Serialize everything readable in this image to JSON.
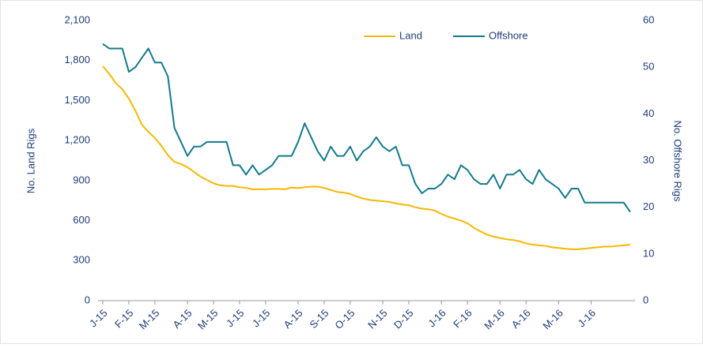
{
  "chart_data": {
    "type": "line",
    "categories": [
      "J-15",
      null,
      null,
      null,
      "F-15",
      null,
      null,
      null,
      "M-15",
      null,
      null,
      null,
      null,
      "A-15",
      null,
      null,
      null,
      "M-15",
      null,
      null,
      null,
      "J-15",
      null,
      null,
      null,
      "J-15",
      null,
      null,
      null,
      null,
      "A-15",
      null,
      null,
      null,
      "S-15",
      null,
      null,
      null,
      "O-15",
      null,
      null,
      null,
      null,
      "N-15",
      null,
      null,
      null,
      "D-15",
      null,
      null,
      null,
      null,
      "J-16",
      null,
      null,
      null,
      "F-16",
      null,
      null,
      null,
      null,
      "M-16",
      null,
      null,
      null,
      "A-16",
      null,
      null,
      null,
      null,
      "M-16",
      null,
      null,
      null,
      null,
      "J-16",
      null,
      null,
      null,
      null,
      null,
      null
    ],
    "series": [
      {
        "name": "Land",
        "color": "#f5b800",
        "axis": "y",
        "values": [
          1757,
          1700,
          1630,
          1585,
          1515,
          1425,
          1320,
          1265,
          1220,
          1160,
          1090,
          1040,
          1025,
          1000,
          965,
          930,
          905,
          880,
          865,
          860,
          860,
          850,
          845,
          835,
          835,
          835,
          838,
          838,
          835,
          848,
          844,
          850,
          855,
          855,
          845,
          830,
          815,
          810,
          800,
          780,
          765,
          755,
          750,
          745,
          740,
          730,
          720,
          715,
          700,
          690,
          685,
          675,
          650,
          630,
          615,
          600,
          580,
          545,
          520,
          495,
          480,
          470,
          460,
          455,
          445,
          430,
          420,
          415,
          410,
          400,
          395,
          390,
          385,
          385,
          390,
          395,
          400,
          405,
          405,
          410,
          415,
          420
        ]
      },
      {
        "name": "Offshore",
        "color": "#137a8c",
        "axis": "y2",
        "values": [
          55,
          54,
          54,
          54,
          49,
          50,
          52,
          54,
          51,
          51,
          48,
          37,
          34,
          31,
          33,
          33,
          34,
          34,
          34,
          34,
          29,
          29,
          27,
          29,
          27,
          28,
          29,
          31,
          31,
          31,
          34,
          38,
          35,
          32,
          30,
          33,
          31,
          31,
          33,
          30,
          32,
          33,
          35,
          33,
          32,
          33,
          29,
          29,
          25,
          23,
          24,
          24,
          25,
          27,
          26,
          29,
          28,
          26,
          25,
          25,
          27,
          24,
          27,
          27,
          28,
          26,
          25,
          28,
          26,
          25,
          24,
          22,
          24,
          24,
          21,
          21,
          21,
          21,
          21,
          21,
          21,
          19
        ]
      }
    ],
    "ylabel": "No. Land Rigs",
    "y2label": "No. Offshore Rigs",
    "ylim": [
      0,
      2100
    ],
    "yticks": [
      0,
      300,
      600,
      900,
      {
        "value": 1200,
        "label": "1,200"
      },
      {
        "value": 1500,
        "label": "1,500"
      },
      {
        "value": 1800,
        "label": "1,800"
      },
      {
        "value": 2100,
        "label": "2,100"
      }
    ],
    "y2lim": [
      0,
      60
    ],
    "y2ticks": [
      0,
      10,
      20,
      30,
      40,
      50,
      60
    ],
    "grid": false,
    "legend": "top"
  }
}
